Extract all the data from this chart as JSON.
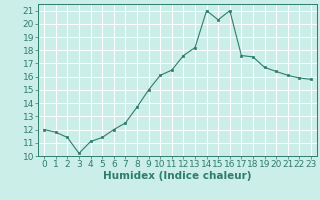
{
  "x": [
    0,
    1,
    2,
    3,
    4,
    5,
    6,
    7,
    8,
    9,
    10,
    11,
    12,
    13,
    14,
    15,
    16,
    17,
    18,
    19,
    20,
    21,
    22,
    23
  ],
  "y": [
    12.0,
    11.8,
    11.4,
    10.2,
    11.1,
    11.4,
    12.0,
    12.5,
    13.7,
    15.0,
    16.1,
    16.5,
    17.6,
    18.2,
    21.0,
    20.3,
    21.0,
    17.6,
    17.5,
    16.7,
    16.4,
    16.1,
    15.9,
    15.8
  ],
  "xlabel": "Humidex (Indice chaleur)",
  "xlim": [
    -0.5,
    23.5
  ],
  "ylim": [
    10,
    21.5
  ],
  "yticks": [
    10,
    11,
    12,
    13,
    14,
    15,
    16,
    17,
    18,
    19,
    20,
    21
  ],
  "xticks": [
    0,
    1,
    2,
    3,
    4,
    5,
    6,
    7,
    8,
    9,
    10,
    11,
    12,
    13,
    14,
    15,
    16,
    17,
    18,
    19,
    20,
    21,
    22,
    23
  ],
  "line_color": "#2e7d6e",
  "marker_color": "#2e7d6e",
  "bg_color": "#cceee8",
  "grid_color": "#ffffff",
  "xlabel_fontsize": 7.5,
  "tick_fontsize": 6.5
}
